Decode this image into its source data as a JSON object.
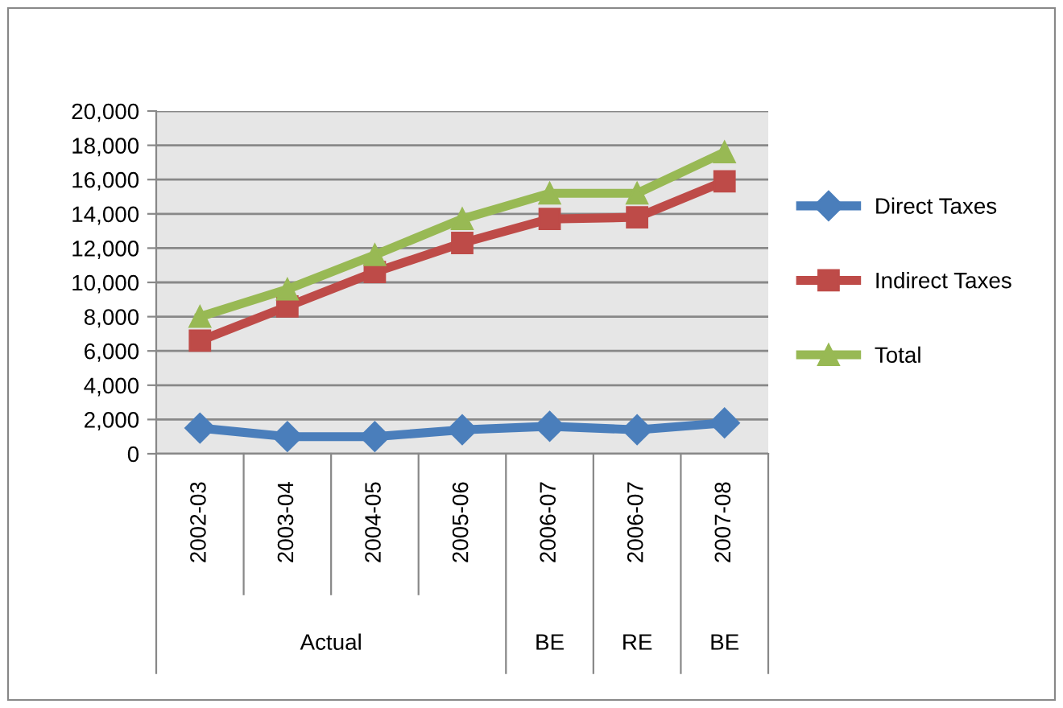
{
  "chart_data": {
    "type": "line",
    "categories": [
      "2002-03",
      "2003-04",
      "2004-05",
      "2005-06",
      "2006-07",
      "2006-07",
      "2007-08"
    ],
    "series": [
      {
        "name": "Direct Taxes",
        "color": "#4a7ebb",
        "marker": "diamond",
        "values": [
          1500,
          1000,
          1000,
          1400,
          1600,
          1400,
          1800
        ]
      },
      {
        "name": "Indirect Taxes",
        "color": "#be4b48",
        "marker": "square",
        "values": [
          6600,
          8600,
          10600,
          12300,
          13700,
          13800,
          15900
        ]
      },
      {
        "name": "Total",
        "color": "#98b954",
        "marker": "triangle",
        "values": [
          8000,
          9600,
          11600,
          13700,
          15200,
          15200,
          17600
        ]
      }
    ],
    "ylim": [
      0,
      20000
    ],
    "yticks": [
      {
        "value": 0,
        "label": "0"
      },
      {
        "value": 2000,
        "label": "2,000"
      },
      {
        "value": 4000,
        "label": "4,000"
      },
      {
        "value": 6000,
        "label": "6,000"
      },
      {
        "value": 8000,
        "label": "8,000"
      },
      {
        "value": 10000,
        "label": "10,000"
      },
      {
        "value": 12000,
        "label": "12,000"
      },
      {
        "value": 14000,
        "label": "14,000"
      },
      {
        "value": 16000,
        "label": "16,000"
      },
      {
        "value": 18000,
        "label": "18,000"
      },
      {
        "value": 20000,
        "label": "20,000"
      }
    ],
    "grid": "y",
    "legend": "right",
    "annotations": [
      "Actual",
      "BE",
      "RE",
      "BE"
    ]
  }
}
